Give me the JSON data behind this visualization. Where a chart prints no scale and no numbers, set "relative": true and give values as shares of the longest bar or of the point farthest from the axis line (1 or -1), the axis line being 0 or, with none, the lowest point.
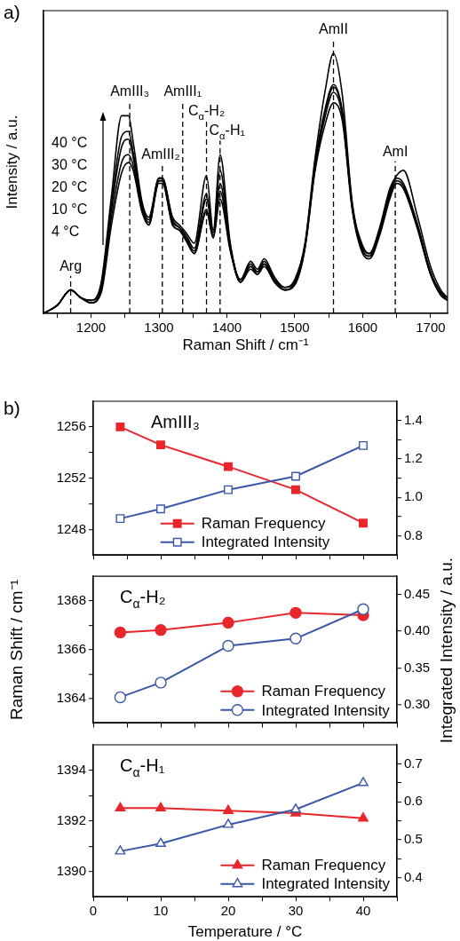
{
  "chart_data": [
    {
      "type": "line",
      "relative": true,
      "xlabel": "Raman Shift / cm⁻¹",
      "ylabel": "Intensity / a.u.",
      "marker": "none",
      "legend": false,
      "grid": false,
      "annotations": [
        "a)",
        "40 °C",
        "30 °C",
        "20 °C",
        "10 °C",
        "4 °C"
      ],
      "xlim": [
        1130,
        1725
      ],
      "xticks": [
        {
          "value": 1150,
          "label": null
        },
        1200,
        {
          "value": 1250,
          "label": null
        },
        1300,
        {
          "value": 1350,
          "label": null
        },
        1400,
        {
          "value": 1450,
          "label": null
        },
        1500,
        {
          "value": 1550,
          "label": null
        },
        1600,
        {
          "value": 1650,
          "label": null
        },
        1700
      ],
      "ref_lines": [
        {
          "axis": "x",
          "value": 1170,
          "label": "Arg",
          "line_style": "dashed",
          "color": "#000000"
        },
        {
          "axis": "x",
          "value": 1257,
          "label": "AmIII₃",
          "line_style": "dashed",
          "color": "#000000"
        },
        {
          "axis": "x",
          "value": 1305,
          "label": "AmIII₂",
          "line_style": "dashed",
          "color": "#000000"
        },
        {
          "axis": "x",
          "value": 1335,
          "label": "AmIII₁",
          "line_style": "dashed",
          "color": "#000000"
        },
        {
          "axis": "x",
          "value": 1370,
          "label": "C$_{α}$-H₂",
          "line_style": "dashed",
          "color": "#000000"
        },
        {
          "axis": "x",
          "value": 1390,
          "label": "C$_{α}$-H₁",
          "line_style": "dashed",
          "color": "#000000"
        },
        {
          "axis": "x",
          "value": 1557,
          "label": "AmII",
          "line_style": "dashed",
          "color": "#000000"
        },
        {
          "axis": "x",
          "value": 1648,
          "label": "AmI",
          "line_style": "dashed",
          "color": "#000000"
        }
      ],
      "x": [
        1130,
        1150,
        1170,
        1185,
        1200,
        1215,
        1230,
        1245,
        1255,
        1262,
        1275,
        1285,
        1300,
        1305,
        1320,
        1330,
        1340,
        1352,
        1370,
        1380,
        1390,
        1405,
        1420,
        1435,
        1445,
        1455,
        1470,
        1485,
        1500,
        1515,
        1530,
        1545,
        1557,
        1570,
        1585,
        1600,
        1610,
        1625,
        1640,
        1650,
        1660,
        1680,
        1700,
        1715,
        1725
      ],
      "series": [
        {
          "color": "#000000",
          "values": [
            0,
            0.03,
            0.09,
            0.06,
            0.05,
            0.12,
            0.45,
            0.76,
            0.76,
            0.66,
            0.43,
            0.37,
            0.52,
            0.52,
            0.37,
            0.34,
            0.31,
            0.27,
            0.53,
            0.32,
            0.61,
            0.27,
            0.13,
            0.2,
            0.17,
            0.21,
            0.14,
            0.1,
            0.13,
            0.27,
            0.6,
            0.86,
            1,
            0.84,
            0.42,
            0.26,
            0.23,
            0.33,
            0.48,
            0.53,
            0.55,
            0.38,
            0.18,
            0.09,
            0.06
          ]
        },
        {
          "color": "#000000",
          "values": [
            0,
            0.03,
            0.09,
            0.06,
            0.05,
            0.11,
            0.42,
            0.68,
            0.7,
            0.62,
            0.42,
            0.36,
            0.52,
            0.52,
            0.36,
            0.33,
            0.3,
            0.25,
            0.46,
            0.31,
            0.55,
            0.26,
            0.13,
            0.19,
            0.16,
            0.2,
            0.13,
            0.1,
            0.12,
            0.26,
            0.58,
            0.79,
            0.88,
            0.78,
            0.41,
            0.25,
            0.23,
            0.32,
            0.47,
            0.52,
            0.5,
            0.35,
            0.16,
            0.08,
            0.06
          ]
        },
        {
          "color": "#000000",
          "values": [
            0,
            0.03,
            0.09,
            0.06,
            0.04,
            0.1,
            0.4,
            0.64,
            0.67,
            0.6,
            0.41,
            0.35,
            0.51,
            0.51,
            0.35,
            0.33,
            0.29,
            0.24,
            0.44,
            0.3,
            0.5,
            0.25,
            0.12,
            0.18,
            0.16,
            0.19,
            0.13,
            0.09,
            0.12,
            0.26,
            0.57,
            0.78,
            0.87,
            0.77,
            0.4,
            0.24,
            0.22,
            0.31,
            0.46,
            0.51,
            0.49,
            0.34,
            0.15,
            0.08,
            0.05
          ]
        },
        {
          "color": "#000000",
          "values": [
            0,
            0.03,
            0.09,
            0.06,
            0.04,
            0.09,
            0.37,
            0.58,
            0.61,
            0.57,
            0.4,
            0.34,
            0.51,
            0.51,
            0.34,
            0.32,
            0.28,
            0.23,
            0.4,
            0.29,
            0.47,
            0.25,
            0.12,
            0.18,
            0.15,
            0.19,
            0.12,
            0.09,
            0.11,
            0.25,
            0.56,
            0.76,
            0.85,
            0.76,
            0.4,
            0.24,
            0.22,
            0.31,
            0.45,
            0.5,
            0.48,
            0.34,
            0.15,
            0.07,
            0.05
          ]
        },
        {
          "color": "#000000",
          "values": [
            0,
            0.03,
            0.09,
            0.06,
            0.04,
            0.08,
            0.34,
            0.54,
            0.58,
            0.55,
            0.39,
            0.34,
            0.5,
            0.5,
            0.34,
            0.32,
            0.28,
            0.23,
            0.39,
            0.29,
            0.44,
            0.24,
            0.12,
            0.17,
            0.15,
            0.18,
            0.12,
            0.09,
            0.11,
            0.25,
            0.55,
            0.73,
            0.81,
            0.74,
            0.39,
            0.23,
            0.21,
            0.3,
            0.44,
            0.5,
            0.48,
            0.33,
            0.15,
            0.07,
            0.05
          ]
        }
      ]
    },
    {
      "type": "line",
      "title": "AmIII₃",
      "annotations": [
        "b)"
      ],
      "marker": "square",
      "legend": "bottom",
      "grid": false,
      "tick_labels": "y",
      "x": [
        4,
        10,
        20,
        30,
        40
      ],
      "xlim": [
        0,
        45
      ],
      "xticks": [
        0,
        {
          "value": 5,
          "label": null
        },
        10,
        {
          "value": 15,
          "label": null
        },
        20,
        {
          "value": 25,
          "label": null
        },
        30,
        {
          "value": 35,
          "label": null
        },
        40,
        {
          "value": 45,
          "label": null
        }
      ],
      "ylim": [
        1246,
        1258
      ],
      "yticks": [
        1248,
        {
          "value": 1250,
          "label": null
        },
        1252,
        {
          "value": 1254,
          "label": null
        },
        1256
      ],
      "y2lim": [
        0.7,
        1.5
      ],
      "y2ticks": [
        0.8,
        {
          "value": 0.9,
          "label": null
        },
        {
          "value": 1,
          "label": "1.0"
        },
        {
          "value": 1.1,
          "label": null
        },
        1.2,
        {
          "value": 1.3,
          "label": null
        },
        1.4
      ],
      "series": [
        {
          "name": "Raman Frequency",
          "color": "#e8262b",
          "values": [
            1256,
            1254.6,
            1252.9,
            1251.1,
            1248.5
          ]
        },
        {
          "name": "Integrated Intensity",
          "color": "#3a57a7",
          "axis": "y2",
          "values": [
            0.89,
            0.94,
            1.04,
            1.11,
            1.27
          ]
        }
      ]
    },
    {
      "type": "line",
      "title": "C$_{α}$-H₂",
      "ylabel": "Raman Shift / cm⁻¹",
      "y2label": "Integrated Intensity / a.u.",
      "marker": "circle",
      "legend": "bottom right",
      "grid": false,
      "tick_labels": "y",
      "x": [
        4,
        10,
        20,
        30,
        40
      ],
      "xlim": [
        0,
        45
      ],
      "xticks": [
        0,
        {
          "value": 5,
          "label": null
        },
        10,
        {
          "value": 15,
          "label": null
        },
        20,
        {
          "value": 25,
          "label": null
        },
        30,
        {
          "value": 35,
          "label": null
        },
        40,
        {
          "value": 45,
          "label": null
        }
      ],
      "ylim": [
        1363,
        1369
      ],
      "yticks": [
        1364,
        {
          "value": 1365,
          "label": null
        },
        1366,
        {
          "value": 1367,
          "label": null
        },
        1368
      ],
      "y2lim": [
        0.275,
        0.475
      ],
      "y2ticks": [
        {
          "value": 0.3,
          "label": "0.30"
        },
        0.35,
        {
          "value": 0.4,
          "label": "0.40"
        },
        0.45
      ],
      "series": [
        {
          "name": "Raman Frequency",
          "color": "#e8262b",
          "values": [
            1366.7,
            1366.8,
            1367.1,
            1367.5,
            1367.4
          ]
        },
        {
          "name": "Integrated Intensity",
          "color": "#3a57a7",
          "axis": "y2",
          "values": [
            0.31,
            0.33,
            0.38,
            0.39,
            0.43
          ]
        }
      ]
    },
    {
      "type": "line",
      "title": "C$_{α}$-H₁",
      "xlabel": "Temperature / °C",
      "marker": "triangle",
      "legend": "bottom right",
      "grid": false,
      "x": [
        4,
        10,
        20,
        30,
        40
      ],
      "xlim": [
        0,
        45
      ],
      "xticks": [
        0,
        {
          "value": 5,
          "label": null
        },
        10,
        {
          "value": 15,
          "label": null
        },
        20,
        {
          "value": 25,
          "label": null
        },
        30,
        {
          "value": 35,
          "label": null
        },
        40,
        {
          "value": 45,
          "label": null
        }
      ],
      "ylim": [
        1389,
        1395
      ],
      "yticks": [
        1390,
        {
          "value": 1391,
          "label": null
        },
        1392,
        {
          "value": 1393,
          "label": null
        },
        1394
      ],
      "y2lim": [
        0.35,
        0.75
      ],
      "y2ticks": [
        0.4,
        {
          "value": 0.45,
          "label": null
        },
        0.5,
        {
          "value": 0.55,
          "label": null
        },
        0.6,
        {
          "value": 0.65,
          "label": null
        },
        0.7
      ],
      "series": [
        {
          "name": "Raman Frequency",
          "color": "#e8262b",
          "values": [
            1392.5,
            1392.5,
            1392.4,
            1392.3,
            1392.1
          ]
        },
        {
          "name": "Integrated Intensity",
          "color": "#3a57a7",
          "axis": "y2",
          "values": [
            0.47,
            0.49,
            0.54,
            0.58,
            0.65
          ]
        }
      ]
    }
  ]
}
